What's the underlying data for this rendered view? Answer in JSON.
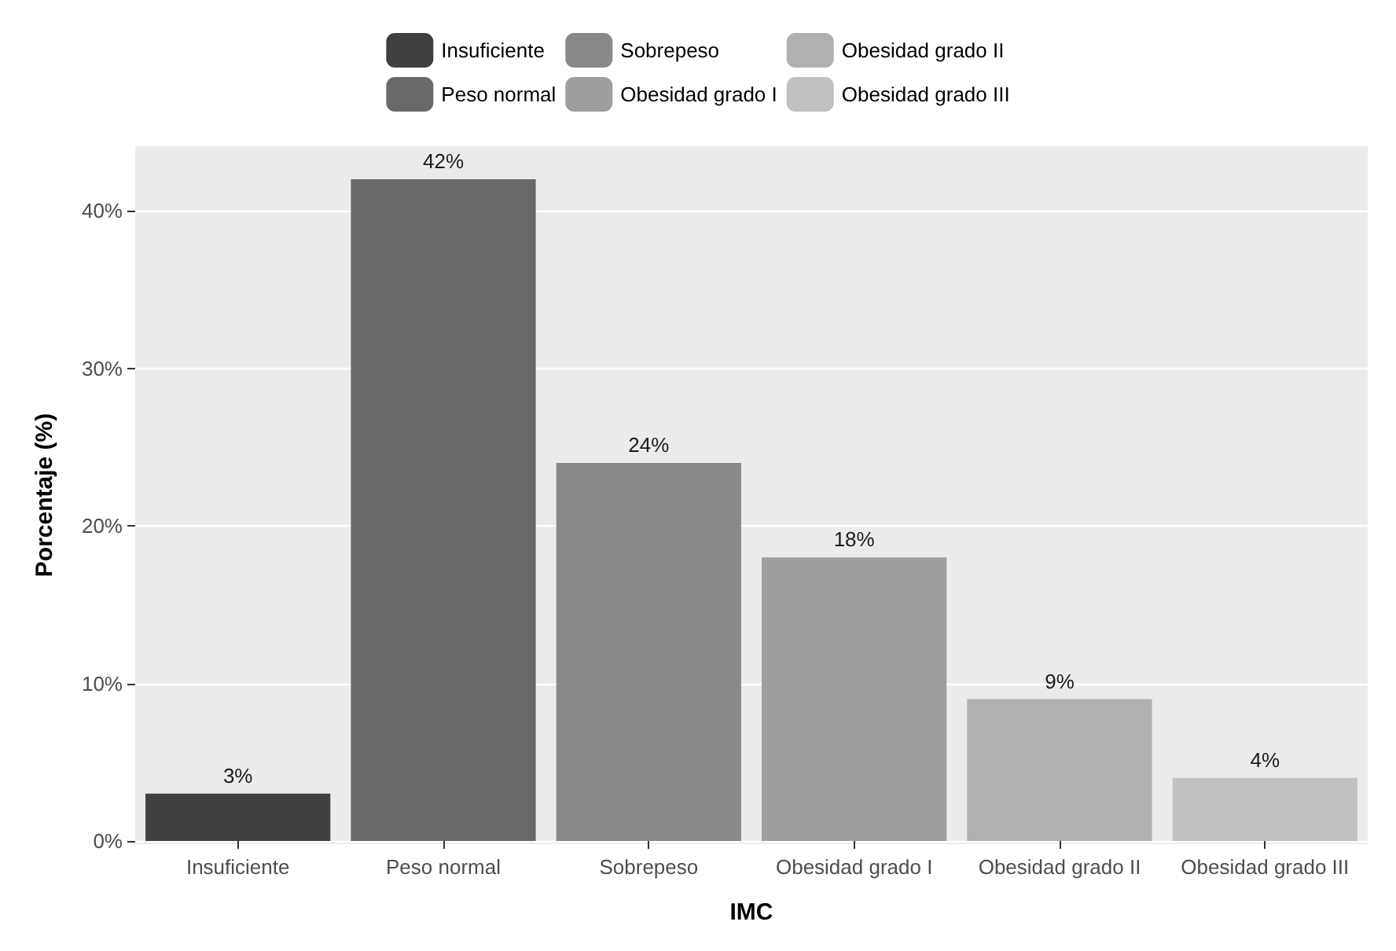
{
  "chart_data": {
    "type": "bar",
    "xlabel": "IMC",
    "ylabel": "Porcentaje (%)",
    "categories": [
      "Insuficiente",
      "Peso normal",
      "Sobrepeso",
      "Obesidad grado I",
      "Obesidad grado II",
      "Obesidad grado III"
    ],
    "series": [
      {
        "name": "Insuficiente",
        "color": "#404040",
        "values": [
          3,
          null,
          null,
          null,
          null,
          null
        ],
        "value_labels": [
          "3%",
          null,
          null,
          null,
          null,
          null
        ]
      },
      {
        "name": "Peso normal",
        "color": "#696969",
        "values": [
          null,
          42,
          null,
          null,
          null,
          null
        ],
        "value_labels": [
          null,
          "42%",
          null,
          null,
          null,
          null
        ]
      },
      {
        "name": "Sobrepeso",
        "color": "#898989",
        "values": [
          null,
          null,
          24,
          null,
          null,
          null
        ],
        "value_labels": [
          null,
          null,
          "24%",
          null,
          null,
          null
        ]
      },
      {
        "name": "Obesidad grado I",
        "color": "#9e9e9e",
        "values": [
          null,
          null,
          null,
          18,
          null,
          null
        ],
        "value_labels": [
          null,
          null,
          null,
          "18%",
          null,
          null
        ]
      },
      {
        "name": "Obesidad grado II",
        "color": "#b0b0b0",
        "values": [
          null,
          null,
          null,
          null,
          9,
          null
        ],
        "value_labels": [
          null,
          null,
          null,
          null,
          "9%",
          null
        ]
      },
      {
        "name": "Obesidad grado III",
        "color": "#c1c1c1",
        "values": [
          null,
          null,
          null,
          null,
          null,
          4
        ],
        "value_labels": [
          null,
          null,
          null,
          null,
          null,
          "4%"
        ]
      }
    ],
    "ylim": [
      -0.2,
      44.1
    ],
    "yticks": [
      {
        "value": 0,
        "label": "0%"
      },
      {
        "value": 10,
        "label": "10%"
      },
      {
        "value": 20,
        "label": "20%"
      },
      {
        "value": 30,
        "label": "30%"
      },
      {
        "value": 40,
        "label": "40%"
      }
    ],
    "grid": "y",
    "legend": "top"
  }
}
